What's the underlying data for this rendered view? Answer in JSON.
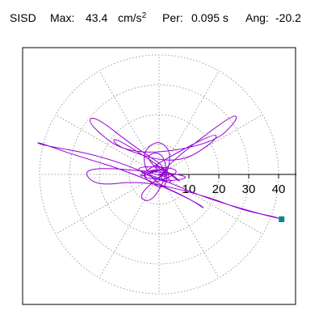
{
  "header": {
    "station": "SISD",
    "max_label": "Max:",
    "max_value": "43.4",
    "max_unit": "cm/s",
    "max_exp": "2",
    "per_label": "Per:",
    "per_value": "0.095 s",
    "ang_label": "Ang:",
    "ang_value": "-20.2"
  },
  "chart_data": {
    "type": "scatter",
    "subtype": "polar-particle-motion",
    "title": "SISD  Max: 43.4 cm/s2  Per: 0.095 s  Ang: -20.2",
    "max_amplitude": 43.4,
    "period_s": 0.095,
    "angle_deg": -20.2,
    "radial_ticks": [
      "10",
      "20",
      "30",
      "40"
    ],
    "radial_tick_values": [
      10,
      20,
      30,
      40
    ],
    "rlim": [
      0,
      46
    ],
    "grid": {
      "rings": [
        10,
        20,
        30,
        40
      ],
      "spokes_deg": [
        0,
        30,
        60,
        90,
        120,
        150,
        180,
        210,
        240,
        270,
        300,
        330
      ],
      "style": "dotted"
    },
    "series": [
      {
        "color": "#9400d3",
        "points": [
          [
            0,
            0
          ],
          [
            4,
            1
          ],
          [
            -3,
            4
          ],
          [
            6,
            -2
          ],
          [
            -8,
            -1
          ],
          [
            5,
            3
          ],
          [
            -4,
            -4
          ],
          [
            10,
            2
          ],
          [
            -12,
            3
          ],
          [
            8,
            -5
          ],
          [
            -6,
            6
          ],
          [
            2,
            8
          ],
          [
            3,
            -7
          ],
          [
            -9,
            2
          ],
          [
            14,
            -1
          ],
          [
            -5,
            -3
          ],
          [
            24,
            20
          ],
          [
            27,
            19
          ],
          [
            18,
            10
          ],
          [
            -10,
            6
          ],
          [
            -24,
            17
          ],
          [
            -22,
            20
          ],
          [
            -8,
            9
          ],
          [
            6,
            0
          ],
          [
            -26,
            3
          ],
          [
            -22,
            -4
          ],
          [
            -6,
            -2
          ],
          [
            15,
            -7
          ],
          [
            28,
            -12
          ],
          [
            38,
            -14
          ],
          [
            41,
            -15
          ],
          [
            33,
            -13
          ],
          [
            16,
            -8
          ],
          [
            4,
            -3
          ],
          [
            -18,
            6
          ],
          [
            -40,
            10
          ],
          [
            -41,
            11
          ],
          [
            -30,
            7
          ],
          [
            -10,
            1
          ],
          [
            12,
            -9
          ],
          [
            16,
            -12
          ],
          [
            10,
            -8
          ],
          [
            -3,
            -2
          ],
          [
            -6,
            7
          ],
          [
            0,
            12
          ],
          [
            5,
            6
          ],
          [
            -2,
            -10
          ],
          [
            -8,
            -7
          ],
          [
            7,
            4
          ],
          [
            -12,
            -3
          ],
          [
            18,
            14
          ],
          [
            20,
            12
          ],
          [
            6,
            3
          ],
          [
            -14,
            9
          ],
          [
            -16,
            13
          ],
          [
            -3,
            5
          ],
          [
            9,
            -4
          ],
          [
            2,
            2
          ],
          [
            -5,
            1
          ],
          [
            3,
            -1
          ],
          [
            0,
            0
          ]
        ],
        "marker": {
          "x": 41,
          "y": -15,
          "color": "#008b8b"
        }
      }
    ]
  }
}
